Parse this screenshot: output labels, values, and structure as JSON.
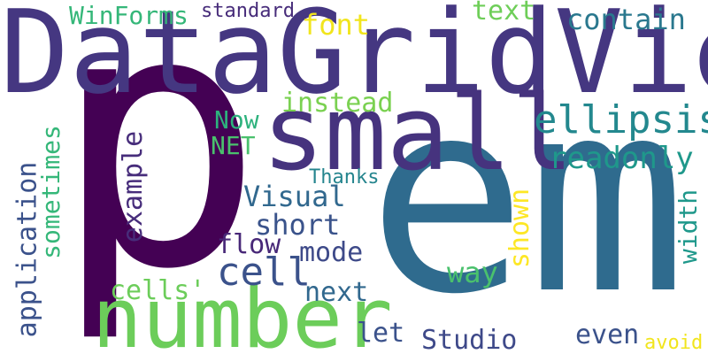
{
  "words": {
    "p": {
      "text": "p",
      "color": "#440154"
    },
    "em": {
      "text": "em",
      "color": "#2f6b8e"
    },
    "DataGridView": {
      "text": "DataGridView",
      "color": "#453781"
    },
    "number": {
      "text": "number",
      "color": "#6ccd5a"
    },
    "small": {
      "text": "small",
      "color": "#46337e"
    },
    "ellipsis": {
      "text": "ellipsis",
      "color": "#23888e"
    },
    "cell": {
      "text": "cell",
      "color": "#3b528b"
    },
    "readonly": {
      "text": "readonly",
      "color": "#1f988b"
    },
    "contain": {
      "text": "contain",
      "color": "#2a788e"
    },
    "text": {
      "text": "text",
      "color": "#6ece58"
    },
    "font": {
      "text": "font",
      "color": "#f1e51d"
    },
    "instead": {
      "text": "instead",
      "color": "#7ad151"
    },
    "WinForms": {
      "text": "WinForms",
      "color": "#35b779"
    },
    "standard": {
      "text": "standard",
      "color": "#472c7a"
    },
    "Now": {
      "text": "Now",
      "color": "#2db27d"
    },
    "NET": {
      "text": "NET",
      "color": "#4ac16d"
    },
    "Thanks": {
      "text": "Thanks",
      "color": "#25858e"
    },
    "Visual": {
      "text": "Visual",
      "color": "#31688e"
    },
    "short": {
      "text": "short",
      "color": "#3a538b"
    },
    "flow": {
      "text": "flow",
      "color": "#482878"
    },
    "mode": {
      "text": "mode",
      "color": "#3e4a89"
    },
    "cells": {
      "text": "cells'",
      "color": "#6ccd5a"
    },
    "next": {
      "text": "next",
      "color": "#31688e"
    },
    "way": {
      "text": "way",
      "color": "#4ac16d"
    },
    "let": {
      "text": "let",
      "color": "#3b528b"
    },
    "Studio": {
      "text": "Studio",
      "color": "#3e4989"
    },
    "even": {
      "text": "even",
      "color": "#3b528b"
    },
    "avoid": {
      "text": "avoid",
      "color": "#f1e51d"
    },
    "example": {
      "text": "example",
      "color": "#472d7b"
    },
    "sometimes": {
      "text": "sometimes",
      "color": "#35b779"
    },
    "application": {
      "text": "application",
      "color": "#3b528b"
    },
    "shown": {
      "text": "shown",
      "color": "#fde725"
    },
    "width": {
      "text": "width",
      "color": "#1f988b"
    }
  }
}
